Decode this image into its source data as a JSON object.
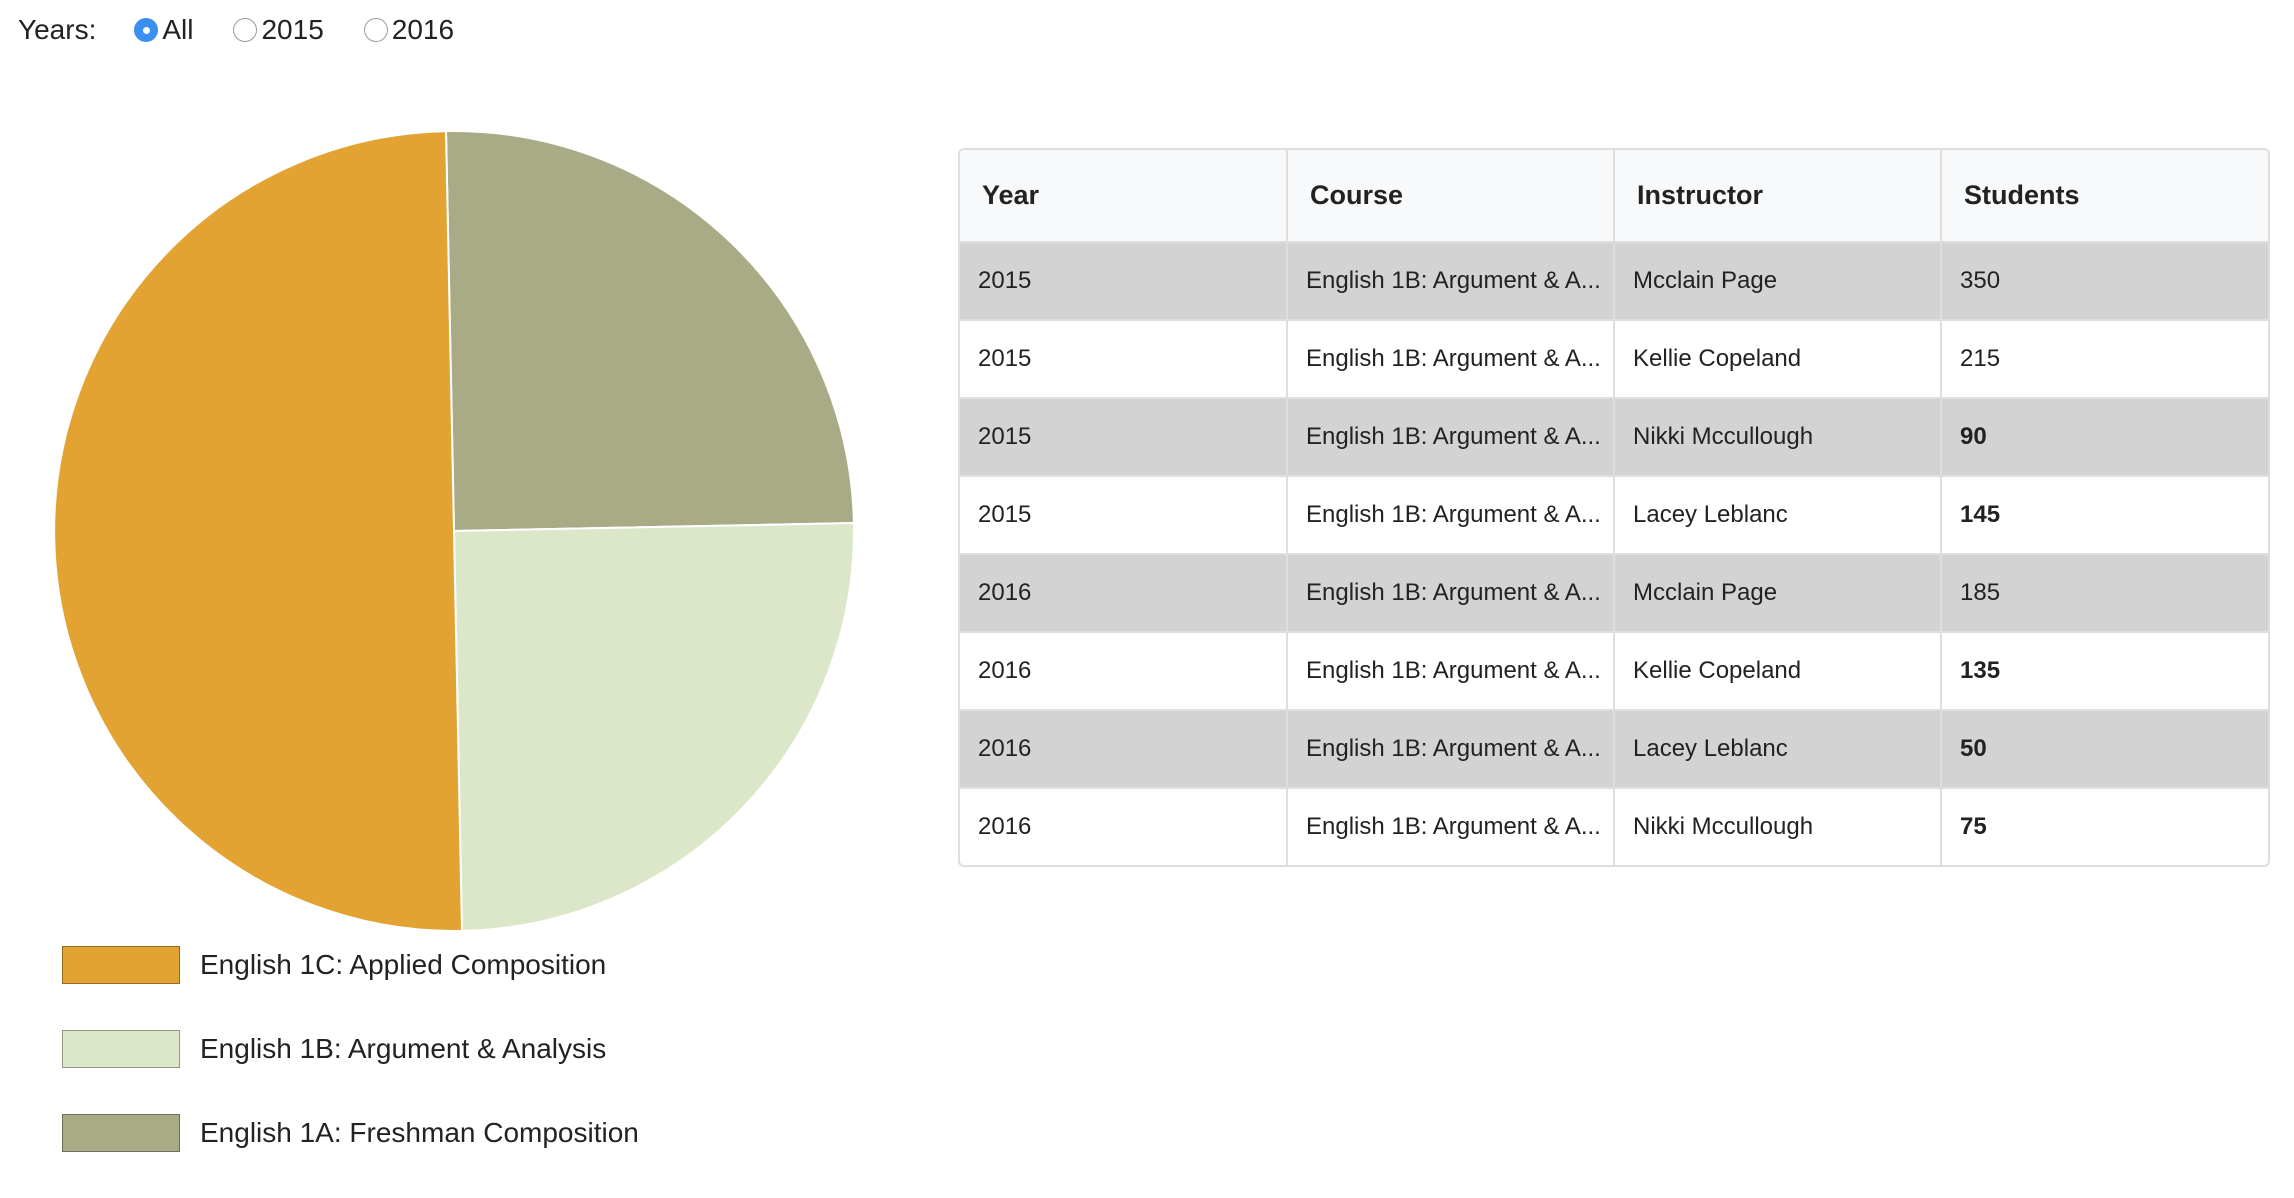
{
  "years_filter": {
    "label": "Years:",
    "options": [
      {
        "label": "All",
        "selected": true
      },
      {
        "label": "2015",
        "selected": false
      },
      {
        "label": "2016",
        "selected": false
      }
    ],
    "selected_color": "#3b8ff0"
  },
  "chart_data": {
    "type": "pie",
    "slices": [
      {
        "label": "English 1C: Applied Composition",
        "value": 0.5,
        "color": "#e2a332"
      },
      {
        "label": "English 1B: Argument & Analysis",
        "value": 0.25,
        "color": "#dce7c9"
      },
      {
        "label": "English 1A: Freshman Composition",
        "value": 0.25,
        "color": "#a9aa86"
      }
    ],
    "legend": "bottom-left"
  },
  "table": {
    "headers": [
      "Year",
      "Course",
      "Instructor",
      "Students"
    ],
    "rows": [
      {
        "year": "2015",
        "course": "English 1B: Argument & A...",
        "instructor": "Mcclain Page",
        "students": "350",
        "students_bold": false,
        "shaded": true
      },
      {
        "year": "2015",
        "course": "English 1B: Argument & A...",
        "instructor": "Kellie Copeland",
        "students": "215",
        "students_bold": false,
        "shaded": false
      },
      {
        "year": "2015",
        "course": "English 1B: Argument & A...",
        "instructor": "Nikki Mccullough",
        "students": "90",
        "students_bold": true,
        "shaded": true
      },
      {
        "year": "2015",
        "course": "English 1B: Argument & A...",
        "instructor": "Lacey Leblanc",
        "students": "145",
        "students_bold": true,
        "shaded": false
      },
      {
        "year": "2016",
        "course": "English 1B: Argument & A...",
        "instructor": "Mcclain Page",
        "students": "185",
        "students_bold": false,
        "shaded": true
      },
      {
        "year": "2016",
        "course": "English 1B: Argument & A...",
        "instructor": "Kellie Copeland",
        "students": "135",
        "students_bold": true,
        "shaded": false
      },
      {
        "year": "2016",
        "course": "English 1B: Argument & A...",
        "instructor": "Lacey Leblanc",
        "students": "50",
        "students_bold": true,
        "shaded": true
      },
      {
        "year": "2016",
        "course": "English 1B: Argument & A...",
        "instructor": "Nikki Mccullough",
        "students": "75",
        "students_bold": true,
        "shaded": false
      }
    ]
  }
}
